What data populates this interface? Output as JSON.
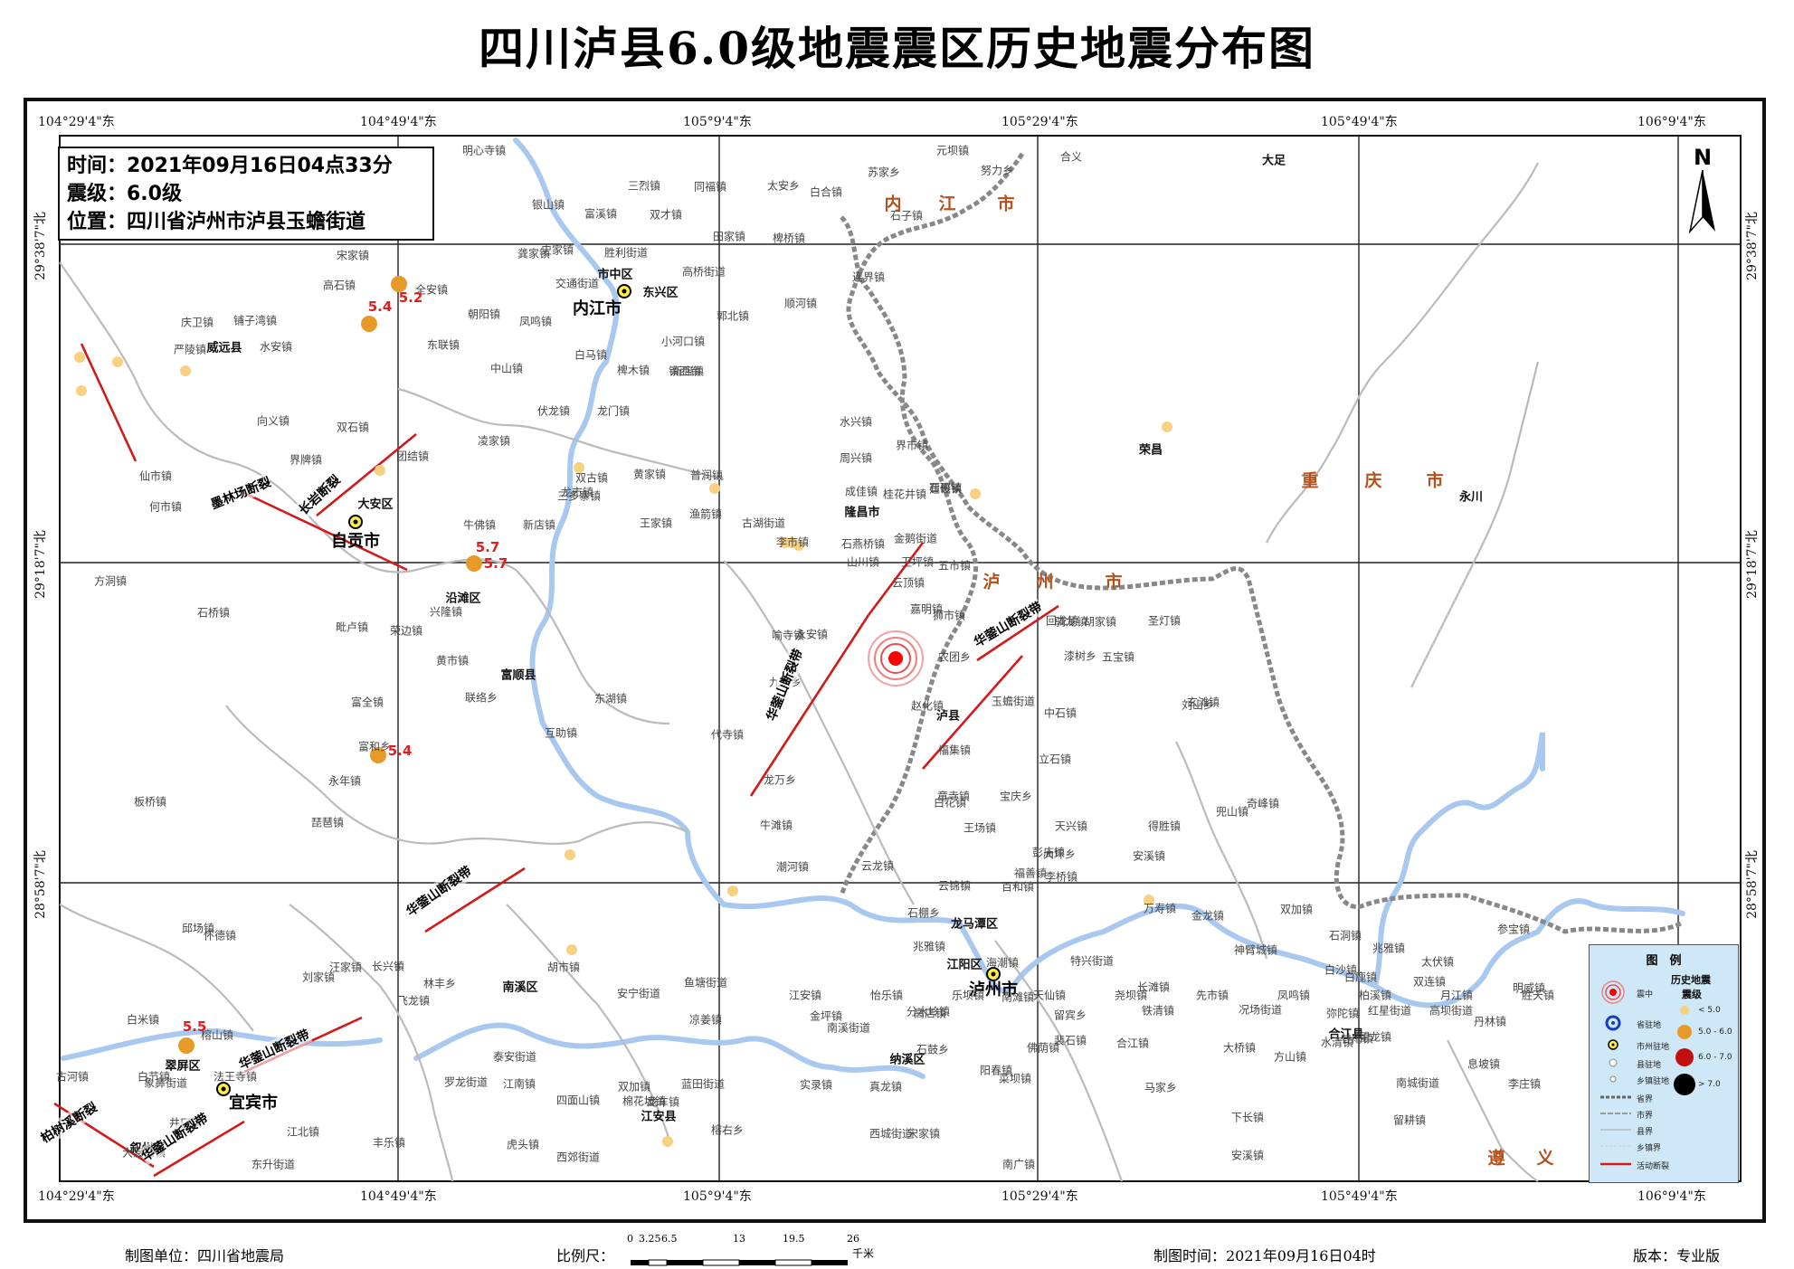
{
  "title": "四川泸县6.0级地震震区历史地震分布图",
  "info": {
    "time": "时间：2021年09月16日04点33分",
    "magnitude": "震级：6.0级",
    "location": "位置：四川省泸州市泸县玉蟾街道"
  },
  "coords": {
    "lon": [
      "104°29'4\"东",
      "104°49'4\"东",
      "105°9'4\"东",
      "105°29'4\"东",
      "105°49'4\"东",
      "106°9'4\"东"
    ],
    "lat": [
      "29°38'7\"北",
      "29°18'7\"北",
      "28°58'7\"北"
    ]
  },
  "north_label": "N",
  "cities": [
    {
      "name": "内江市",
      "cls": "big"
    },
    {
      "name": "自贡市",
      "cls": "big"
    },
    {
      "name": "泸州市",
      "cls": "big"
    },
    {
      "name": "宜宾市",
      "cls": "big"
    },
    {
      "name": "市中区",
      "cls": "mid"
    },
    {
      "name": "东兴区",
      "cls": "mid"
    },
    {
      "name": "大安区",
      "cls": "mid"
    },
    {
      "name": "沿滩区",
      "cls": "mid"
    },
    {
      "name": "富顺县",
      "cls": "mid"
    },
    {
      "name": "威远县",
      "cls": "mid"
    },
    {
      "name": "隆昌市",
      "cls": "mid"
    },
    {
      "name": "泸县",
      "cls": "mid"
    },
    {
      "name": "龙马潭区",
      "cls": "mid"
    },
    {
      "name": "江阳区",
      "cls": "mid"
    },
    {
      "name": "纳溪区",
      "cls": "mid"
    },
    {
      "name": "江安县",
      "cls": "mid"
    },
    {
      "name": "南溪区",
      "cls": "mid"
    },
    {
      "name": "翠屏区",
      "cls": "mid"
    },
    {
      "name": "叙州区",
      "cls": "mid"
    },
    {
      "name": "合江县",
      "cls": "mid"
    },
    {
      "name": "荣昌",
      "cls": "mid"
    },
    {
      "name": "永川",
      "cls": "mid"
    },
    {
      "name": "大足",
      "cls": "mid"
    }
  ],
  "towns": [
    "明心寺镇",
    "三烈镇",
    "同福镇",
    "太安乡",
    "白合镇",
    "苏家乡",
    "元坝镇",
    "努力乡",
    "合义",
    "银山镇",
    "富溪镇",
    "双才镇",
    "田家镇",
    "椑桥镇",
    "石子镇",
    "宋家镇",
    "龚家镇",
    "史家镇",
    "胜利街道",
    "高桥街道",
    "高石镇",
    "连界镇",
    "交通街道",
    "全安镇",
    "庆卫镇",
    "铺子湾镇",
    "郭北镇",
    "顺河镇",
    "朝阳镇",
    "凤鸣镇",
    "小河口镇",
    "东联镇",
    "白马镇",
    "镇西镇",
    "严陵镇",
    "水安镇",
    "中山镇",
    "椑木镇",
    "新店镇",
    "向义镇",
    "界牌镇",
    "双石镇",
    "团结镇",
    "三多寨镇",
    "凌家镇",
    "伏龙镇",
    "龙门镇",
    "水兴镇",
    "界市镇",
    "周兴镇",
    "普润镇",
    "黄家镇",
    "桂花井镇",
    "石碾镇",
    "渔箭镇",
    "双古镇",
    "成佳镇",
    "建设镇",
    "仙市镇",
    "何市镇",
    "牛佛镇",
    "新店镇",
    "龙市镇",
    "古湖街道",
    "金鹅街道",
    "李市镇",
    "石燕桥镇",
    "卫坪镇",
    "五市镇",
    "回龙镇",
    "圣灯镇",
    "王家镇",
    "山川镇",
    "云顶镇",
    "嘉明镇",
    "方洞镇",
    "石桥镇",
    "毗卢镇",
    "荣边镇",
    "兴隆镇",
    "黄市镇",
    "狮市镇",
    "骑龙镇",
    "胡家镇",
    "喻寺镇",
    "永安镇",
    "五宝镇",
    "农团乡",
    "漆树乡",
    "刘山乡",
    "九洪乡",
    "赵化镇",
    "玄滩镇",
    "中石镇",
    "富全镇",
    "联络乡",
    "东湖镇",
    "互助镇",
    "代寺镇",
    "玉蟾街道",
    "福集镇",
    "立石镇",
    "龙万乡",
    "童寺镇",
    "宝庆乡",
    "天兴镇",
    "得胜镇",
    "奇峰镇",
    "富和乡",
    "板桥镇",
    "永年镇",
    "琵琶镇",
    "牛滩镇",
    "白花镇",
    "王场镇",
    "彭庙镇",
    "兜山镇",
    "潮河镇",
    "云龙镇",
    "云锦镇",
    "百和镇",
    "福善镇",
    "李桥镇",
    "大坪乡",
    "安溪镇",
    "万寿镇",
    "金龙镇",
    "双加镇",
    "石洞镇",
    "兆雅镇",
    "太伏镇",
    "参宝镇",
    "水兴镇",
    "邱场镇",
    "怀德镇",
    "海潮镇",
    "林丰乡",
    "汪家镇",
    "飞龙镇",
    "石棚乡",
    "兆雅镇",
    "特兴街道",
    "长滩镇",
    "神臂城镇",
    "白沙镇",
    "白鹿镇",
    "双连镇",
    "明威镇",
    "黄沙镇",
    "刘家镇",
    "长兴镇",
    "胡市镇",
    "安宁街道",
    "鱼塘街道",
    "金坪镇",
    "高店镇",
    "留宾乡",
    "铁清镇",
    "况场街道",
    "红星街道",
    "高坝街道",
    "弥陀镇",
    "大桥镇",
    "望龙镇",
    "白米镇",
    "榕山镇",
    "甘雨镇",
    "南滩镇",
    "凉姜镇",
    "石鼓乡",
    "南溪街道",
    "裴石镇",
    "水清镇",
    "丹林镇",
    "方山镇",
    "泰安街道",
    "分水岭镇",
    "佛荫镇",
    "合江镇",
    "息坡镇",
    "象鼻街道",
    "罗龙街道",
    "江南镇",
    "四面山镇",
    "双加镇",
    "蓝田街道",
    "实录镇",
    "真龙镇",
    "菜坝镇",
    "南城街道",
    "李庄镇",
    "井口镇",
    "江北镇",
    "棉花坡镇",
    "龙车镇",
    "榕右乡",
    "西城街道",
    "宋家镇",
    "马家乡",
    "下长镇",
    "留耕镇",
    "阳春镇",
    "大渡口镇",
    "东升街道",
    "丰乐镇",
    "虎头镇",
    "西郊街道",
    "南广镇",
    "安溪镇",
    "江安镇",
    "怡乐镇",
    "乐坝镇",
    "天仙镇",
    "尧坝镇",
    "先市镇",
    "凤鸣镇",
    "柏溪镇",
    "月江镇",
    "胜天镇",
    "梅白乡",
    "古河镇",
    "白节镇",
    "法王寺镇"
  ],
  "provinces": [
    "内",
    "江",
    "市",
    "泸",
    "州",
    "市",
    "重",
    "庆",
    "市",
    "遵",
    "义"
  ],
  "faults": [
    "华蓥山断裂带",
    "华蓥山断裂带",
    "华蓥山断裂带",
    "华蓥山断裂带",
    "华蓥山断裂带",
    "墨林场断裂",
    "长岩断裂",
    "柏树溪断裂"
  ],
  "magnitudes": [
    "5.4",
    "5.2",
    "5.7",
    "5.7",
    "5.4",
    "5.5"
  ],
  "legend": {
    "title": "图　例",
    "history_title": "历史地震",
    "history_sub": "震级",
    "epicenter": "震中",
    "capital": "省驻地",
    "prefecture": "市州驻地",
    "county": "县驻地",
    "township": "乡镇驻地",
    "m1": "< 5.0",
    "m2": "5.0 - 6.0",
    "m3": "6.0 - 7.0",
    "m4": "> 7.0",
    "l1": "省界",
    "l2": "市界",
    "l3": "县界",
    "l4": "乡镇界",
    "l5": "活动断裂"
  },
  "footer": {
    "unit": "制图单位：四川省地震局",
    "scale_label": "比例尺：",
    "scale_ticks": [
      "0",
      "3.25",
      "6.5",
      "13",
      "19.5",
      "26"
    ],
    "scale_unit": "千米",
    "time": "制图时间：2021年09月16日04时",
    "version": "版本：专业版"
  },
  "colors": {
    "river": "#a8c8f0",
    "province": "#888888",
    "fault": "#d21a1a",
    "hist_lt5": "#f7d080",
    "hist_5_6": "#e89a28",
    "hist_6_7": "#c01010",
    "epicenter": "#ff0000",
    "province_label": "#b4501c"
  }
}
